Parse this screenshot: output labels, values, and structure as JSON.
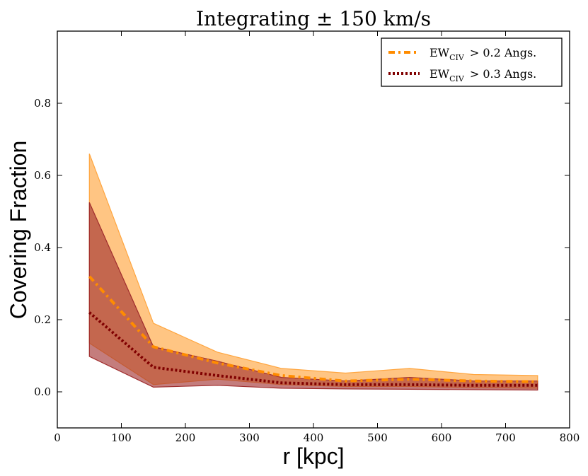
{
  "chart_data": {
    "type": "line",
    "title": "Integrating ± 150 km/s",
    "xlabel": "r [kpc]",
    "ylabel": "Covering Fraction",
    "xlim": [
      0,
      800
    ],
    "ylim": [
      -0.1,
      1.0
    ],
    "xticks": [
      0,
      100,
      200,
      300,
      400,
      500,
      600,
      700,
      800
    ],
    "xtick_labels": [
      "0",
      "100",
      "200",
      "300",
      "400",
      "500",
      "600",
      "700",
      "800"
    ],
    "yticks": [
      0.0,
      0.2,
      0.4,
      0.6,
      0.8
    ],
    "ytick_labels": [
      "0.0",
      "0.2",
      "0.4",
      "0.6",
      "0.8"
    ],
    "grid": false,
    "legend_position": "top-right",
    "x": [
      50,
      150,
      250,
      350,
      450,
      550,
      650,
      750
    ],
    "series": [
      {
        "name": "EW_CIV > 0.2 Angs.",
        "legend_main": "EW",
        "legend_sub": "CIV",
        "legend_rest": "> 0.2 Angs.",
        "values": [
          0.32,
          0.125,
          0.08,
          0.045,
          0.03,
          0.035,
          0.03,
          0.028
        ],
        "lower": [
          0.135,
          0.02,
          0.035,
          0.02,
          0.015,
          0.015,
          0.012,
          0.01
        ],
        "upper": [
          0.66,
          0.19,
          0.11,
          0.065,
          0.052,
          0.065,
          0.048,
          0.045
        ],
        "line_color": "#ff8c00",
        "fill_color": "#ffa640",
        "linestyle": "dashdot"
      },
      {
        "name": "EW_CIV > 0.3 Angs.",
        "legend_main": "EW",
        "legend_sub": "CIV",
        "legend_rest": "> 0.3 Angs.",
        "values": [
          0.22,
          0.068,
          0.045,
          0.025,
          0.02,
          0.02,
          0.018,
          0.018
        ],
        "lower": [
          0.098,
          0.013,
          0.018,
          0.01,
          0.008,
          0.007,
          0.006,
          0.005
        ],
        "upper": [
          0.525,
          0.125,
          0.085,
          0.04,
          0.03,
          0.04,
          0.03,
          0.03
        ],
        "line_color": "#800000",
        "fill_color": "#a02d2d",
        "linestyle": "dotted"
      }
    ]
  }
}
